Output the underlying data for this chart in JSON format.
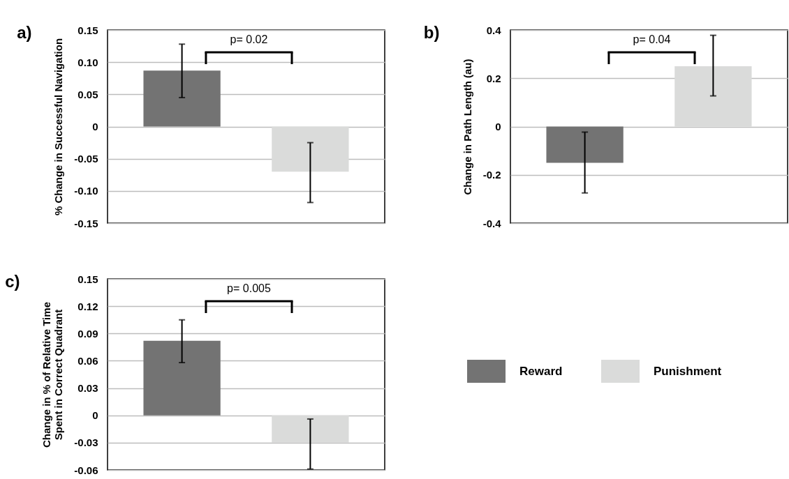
{
  "chart_data": [
    {
      "type": "bar",
      "title": "a)",
      "ylabel": "% Change in Successful Navigation",
      "categories": [
        null
      ],
      "series": [
        {
          "color": "#737373",
          "values": [
            0.087
          ],
          "errors": [
            [
              0.045,
              0.128
            ]
          ]
        },
        {
          "color": "#dadbda",
          "values": [
            -0.07
          ],
          "errors": [
            [
              -0.118,
              -0.025
            ]
          ]
        }
      ],
      "ylim": [
        -0.15,
        0.15
      ],
      "yticks": [
        0.15,
        {
          "value": 0.1,
          "label": "0.10"
        },
        0.05,
        0,
        -0.05,
        {
          "value": -0.1,
          "label": "-0.10"
        },
        -0.15
      ],
      "grid": "y",
      "legend": false,
      "annotations": [
        "p= 0.02"
      ]
    },
    {
      "type": "bar",
      "title": "b)",
      "ylabel": "Change in Path Length (au)",
      "categories": [
        null
      ],
      "series": [
        {
          "color": "#737373",
          "values": [
            -0.15
          ],
          "errors": [
            [
              -0.275,
              -0.023
            ]
          ]
        },
        {
          "color": "#dadbda",
          "values": [
            0.25
          ],
          "errors": [
            [
              0.127,
              0.378
            ]
          ]
        }
      ],
      "ylim": [
        -0.4,
        0.4
      ],
      "yticks": [
        0.4,
        0.2,
        0,
        -0.2,
        -0.4
      ],
      "grid": "y",
      "legend": false,
      "annotations": [
        "p= 0.04"
      ]
    },
    {
      "type": "bar",
      "title": "c)",
      "ylabel": "Change in % of Relative Time Spent in Correct Quadrant",
      "categories": [
        null
      ],
      "series": [
        {
          "name": "Reward",
          "color": "#737373",
          "values": [
            0.082
          ],
          "errors": [
            [
              0.058,
              0.105
            ]
          ]
        },
        {
          "name": "Punishment",
          "color": "#dadbda",
          "values": [
            -0.03
          ],
          "errors": [
            [
              -0.059,
              -0.004
            ]
          ]
        }
      ],
      "ylim": [
        -0.06,
        0.15
      ],
      "yticks": [
        0.15,
        0.12,
        0.09,
        0.06,
        0.03,
        0,
        -0.03,
        -0.06
      ],
      "grid": "y",
      "legend": "right",
      "annotations": [
        "p= 0.005"
      ]
    }
  ]
}
